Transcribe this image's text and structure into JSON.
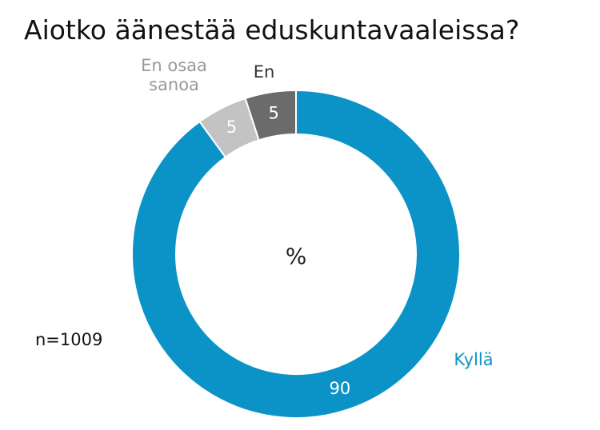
{
  "chart_data": {
    "type": "donut",
    "title": "Aiotko äänestää eduskuntavaaleissa?",
    "center_label": "%",
    "annotation": "n=1009",
    "categories": [
      "Kyllä",
      "En osaa sanoa",
      "En"
    ],
    "values": [
      90,
      5,
      5
    ],
    "colors": [
      "#0b93c8",
      "#c3c3c3",
      "#6b6b6b"
    ],
    "label_colors": [
      "#0b93c8",
      "#999999",
      "#333333"
    ]
  }
}
